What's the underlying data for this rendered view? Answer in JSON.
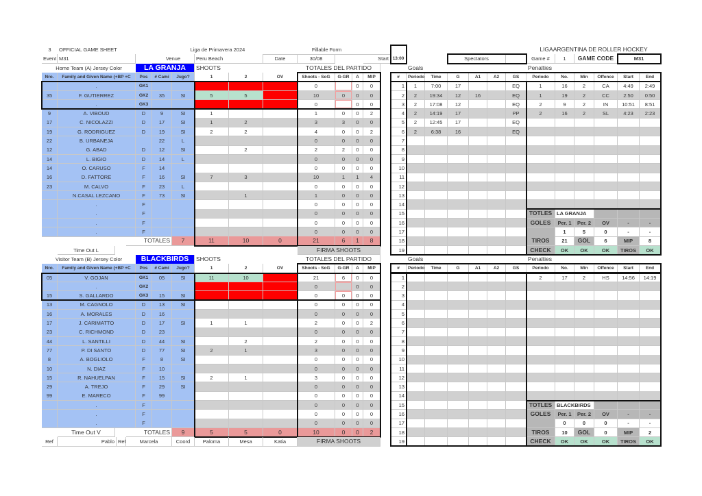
{
  "header": {
    "sheet_no": "3",
    "title": "OFFICIAL GAME SHEET",
    "league": "Liga de Primavera 2024",
    "form": "Fillable Form",
    "federation": "LIGAARGENTINA DE ROLLER HOCKEY",
    "event_label": "Event",
    "event": "M31",
    "venue_label": "Venue",
    "venue": "Peru Beach",
    "date_label": "Date",
    "date": "30/08",
    "start_label": "Start",
    "start": "13:00",
    "spectators_label": "Spectators",
    "game_no_label": "Game #",
    "game_no": "1",
    "game_code_label": "GAME CODE",
    "game_code": "M31"
  },
  "columns": {
    "players": [
      "Nro.",
      "Family and Given Name (+BP +C",
      "Pos",
      "# Cami",
      "Jugo?",
      "1",
      "2",
      "OV",
      "Shoots - SoG",
      "G-GR",
      "A",
      "MIP"
    ],
    "goals": [
      "#",
      "Periodo",
      "Time",
      "G",
      "A1",
      "A2",
      "GS"
    ],
    "penalties": [
      "Periodo",
      "No.",
      "Min",
      "Offence",
      "Start",
      "End"
    ]
  },
  "colors": {
    "player_fill": "#a4c2f4",
    "team_fill": "#0000ff",
    "alt_row": "#d0d0d0",
    "goalie_blocked": "#ff0000",
    "goalie_shots": "#b7e1cd",
    "totals": "#ea9999",
    "ok": "#b7e1cd"
  },
  "teams": [
    {
      "label": "Home Team (A) Jersey Color",
      "name": "LA GRANJA",
      "shoots_label": "SHOOTS",
      "totals_label": "TOTALES DEL PARTIDO",
      "goals_label": "Goals",
      "penalties_label": "Penalties",
      "players": [
        [
          "",
          ".",
          "GK1",
          "",
          "",
          "",
          "",
          "",
          "0",
          "",
          "0",
          "0",
          [
            "red",
            "red",
            "red"
          ]
        ],
        [
          "35",
          "F. GUTIERREZ",
          "GK2",
          "35",
          "SI",
          "5",
          "5",
          "",
          "10",
          "0",
          "0",
          "0",
          [
            "green",
            "green",
            "red"
          ]
        ],
        [
          "",
          ".",
          "GK3",
          "",
          "",
          "",
          "",
          "",
          "0",
          "",
          "0",
          "0",
          [
            "red",
            "red",
            "red"
          ]
        ],
        [
          "9",
          "A. VIBOUD",
          "D",
          "9",
          "SI",
          "1",
          "",
          "",
          "1",
          "0",
          "0",
          "2"
        ],
        [
          "17",
          "C. NICOLAZZI",
          "D",
          "17",
          "SI",
          "1",
          "2",
          "",
          "3",
          "3",
          "0",
          "0"
        ],
        [
          "19",
          "G. RODRIGUEZ",
          "D",
          "19",
          "SI",
          "2",
          "2",
          "",
          "4",
          "0",
          "0",
          "2"
        ],
        [
          "22",
          "B. URBANEJA",
          "",
          "22",
          "L",
          "",
          "",
          "",
          "0",
          "0",
          "0",
          "0"
        ],
        [
          "12",
          "G. ABAD",
          "D",
          "12",
          "SI",
          "",
          "2",
          "",
          "2",
          "2",
          "0",
          "0"
        ],
        [
          "14",
          "L. BIGIO",
          "D",
          "14",
          "L",
          "",
          "",
          "",
          "0",
          "0",
          "0",
          "0"
        ],
        [
          "14",
          "O. CARUSO",
          "F",
          "14",
          "",
          "",
          "",
          "",
          "0",
          "0",
          "0",
          "0"
        ],
        [
          "16",
          "D. FATTORE",
          "F",
          "16",
          "SI",
          "7",
          "3",
          "",
          "10",
          "1",
          "1",
          "4"
        ],
        [
          "23",
          "M. CALVO",
          "F",
          "23",
          "L",
          "",
          "",
          "",
          "0",
          "0",
          "0",
          "0"
        ],
        [
          "",
          "N.CASAL LEZCANO",
          "F",
          "73",
          "SI",
          "",
          "1",
          "",
          "1",
          "0",
          "0",
          "0"
        ],
        [
          "",
          ".",
          "F",
          "",
          "",
          "",
          "",
          "",
          "0",
          "0",
          "0",
          "0"
        ],
        [
          "",
          ".",
          "F",
          "",
          "",
          "",
          "",
          "",
          "0",
          "0",
          "0",
          "0"
        ],
        [
          "",
          ".",
          "F",
          "",
          "",
          "",
          "",
          "",
          "0",
          "0",
          "0",
          "0"
        ],
        [
          "",
          ".",
          "F",
          "",
          "",
          "",
          "",
          "",
          "0",
          "0",
          "0",
          "0"
        ]
      ],
      "totals": {
        "label": "TOTALES",
        "values": [
          "7",
          "11",
          "10",
          "0",
          "21",
          "6",
          "1",
          "8"
        ]
      },
      "timeout": "Time Out L",
      "firma": "FIRMA SHOOTS",
      "goals": [
        [
          "1",
          "7:00",
          "17",
          "",
          "",
          "EQ"
        ],
        [
          "2",
          "19:34",
          "12",
          "16",
          "",
          "EQ"
        ],
        [
          "2",
          "17:08",
          "12",
          "",
          "",
          "EQ"
        ],
        [
          "2",
          "14:19",
          "17",
          "",
          "",
          "PP"
        ],
        [
          "2",
          "12:45",
          "17",
          "",
          "",
          "EQ"
        ],
        [
          "2",
          "6:38",
          "16",
          "",
          "",
          "EQ"
        ]
      ],
      "penalties": [
        [
          "1",
          "16",
          "2",
          "CA",
          "4:49",
          "2:49"
        ],
        [
          "1",
          "19",
          "2",
          "CC",
          "2:50",
          "0:50"
        ],
        [
          "2",
          "9",
          "2",
          "IN",
          "10:51",
          "8:51"
        ],
        [
          "2",
          "16",
          "2",
          "SL",
          "4:23",
          "2:23"
        ]
      ],
      "summary": {
        "title": "TOTLES",
        "team": "LA GRANJA",
        "goles": [
          "GOLES",
          "Per. 1",
          "Per. 2",
          "OV",
          "-",
          "-"
        ],
        "goles_values": [
          "",
          "1",
          "5",
          "0",
          "-",
          "-"
        ],
        "tiros": [
          "TIROS",
          "21",
          "GOL",
          "6",
          "MIP",
          "8"
        ],
        "check": [
          "CHECK",
          "OK",
          "OK",
          "OK",
          "TIROS",
          "OK"
        ]
      }
    },
    {
      "label": "Visitor Team (B) Jersey Color",
      "name": "BLACKBIRDS",
      "shoots_label": "SHOOTS",
      "totals_label": "TOTALES DEL PARTIDO",
      "goals_label": "Goals",
      "penalties_label": "Penalties",
      "players": [
        [
          "05",
          "V. GOJAN",
          "GK1",
          "05",
          "SI",
          "11",
          "10",
          "",
          "21",
          "6",
          "0",
          "0",
          [
            "green",
            "green",
            "red"
          ]
        ],
        [
          "",
          ".",
          "GK2",
          "",
          "",
          "",
          "",
          "",
          "0",
          "",
          "0",
          "0",
          [
            "red",
            "red",
            "red"
          ]
        ],
        [
          "15",
          "S. GALLARDO",
          "GK3",
          "15",
          "SI",
          "",
          "",
          "",
          "0",
          "0",
          "0",
          "0",
          [
            "red",
            "red",
            "red"
          ]
        ],
        [
          "13",
          "M. CAGNOLO",
          "D",
          "13",
          "SI",
          "",
          "",
          "",
          "0",
          "0",
          "0",
          "0"
        ],
        [
          "16",
          "A. MORALES",
          "D",
          "16",
          "",
          "",
          "",
          "",
          "0",
          "0",
          "0",
          "0"
        ],
        [
          "17",
          "J. CARIMATTO",
          "D",
          "17",
          "SI",
          "1",
          "1",
          "",
          "2",
          "0",
          "0",
          "2"
        ],
        [
          "23",
          "C. RICHMOND",
          "D",
          "23",
          "",
          "",
          "",
          "",
          "0",
          "0",
          "0",
          "0"
        ],
        [
          "44",
          "L. SANTILLI",
          "D",
          "44",
          "SI",
          "",
          "2",
          "",
          "2",
          "0",
          "0",
          "0"
        ],
        [
          "77",
          "P. DI SANTO",
          "D",
          "77",
          "SI",
          "2",
          "1",
          "",
          "3",
          "0",
          "0",
          "0"
        ],
        [
          "8",
          "A. BOGLIOLO",
          "F",
          "8",
          "SI",
          "",
          "",
          "",
          "0",
          "0",
          "0",
          "0"
        ],
        [
          "10",
          "N. DIAZ",
          "F",
          "10",
          "",
          "",
          "",
          "",
          "0",
          "0",
          "0",
          "0"
        ],
        [
          "15",
          "R. NAHUELPAN",
          "F",
          "15",
          "SI",
          "2",
          "1",
          "",
          "3",
          "0",
          "0",
          "0"
        ],
        [
          "29",
          "A. TREJO",
          "F",
          "29",
          "SI",
          "",
          "",
          "",
          "0",
          "0",
          "0",
          "0"
        ],
        [
          "99",
          "E. MARECO",
          "F",
          "99",
          "",
          "",
          "",
          "",
          "0",
          "0",
          "0",
          "0"
        ],
        [
          "",
          ".",
          "F",
          "",
          "",
          "",
          "",
          "",
          "0",
          "0",
          "0",
          "0"
        ],
        [
          "",
          ".",
          "F",
          "",
          "",
          "",
          "",
          "",
          "0",
          "0",
          "0",
          "0"
        ],
        [
          "",
          ".",
          "F",
          "",
          "",
          "",
          "",
          "",
          "0",
          "0",
          "0",
          "0"
        ]
      ],
      "totals": {
        "label": "TOTALES",
        "values": [
          "9",
          "5",
          "5",
          "0",
          "10",
          "0",
          "0",
          "2"
        ]
      },
      "timeout": "Time Out V",
      "firma": "FIRMA SHOOTS",
      "goals": [],
      "penalties": [
        [
          "2",
          "17",
          "2",
          "HS",
          "14:56",
          "14:19"
        ]
      ],
      "summary": {
        "title": "TOTLES",
        "team": "BLACKBIRDS",
        "goles": [
          "GOLES",
          "Per. 1",
          "Per. 2",
          "OV",
          "-",
          "-"
        ],
        "goles_values": [
          "",
          "0",
          "0",
          "0",
          "-",
          "-"
        ],
        "tiros": [
          "TIROS",
          "10",
          "GOL",
          "0",
          "MIP",
          "2"
        ],
        "check": [
          "CHECK",
          "OK",
          "OK",
          "OK",
          "TIROS",
          "OK"
        ]
      }
    }
  ],
  "officials": {
    "ref1_label": "Ref",
    "ref1": "Pablo",
    "ref2_label": "Ref",
    "ref2": "Marcela",
    "coord_label": "Coord",
    "coord": "Paloma",
    "extra1": "Mesa",
    "extra2": "Katia"
  }
}
